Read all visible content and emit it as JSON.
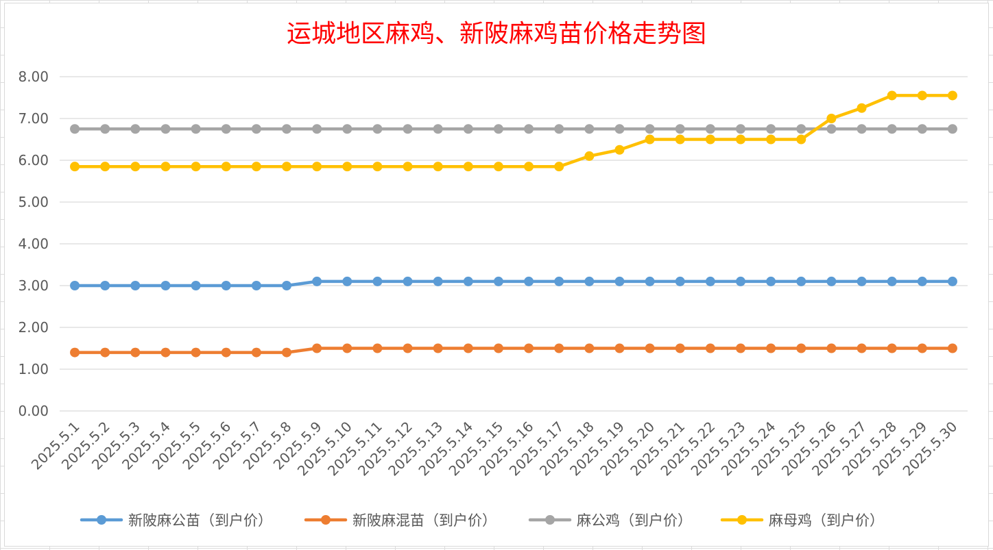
{
  "chart_data": {
    "type": "line",
    "title": "运城地区麻鸡、新陂麻鸡苗价格走势图",
    "xlabel": "",
    "ylabel": "",
    "ylim": [
      0,
      8
    ],
    "ytick_labels": [
      "0.00",
      "1.00",
      "2.00",
      "3.00",
      "4.00",
      "5.00",
      "6.00",
      "7.00",
      "8.00"
    ],
    "grid": "horizontal",
    "legend_position": "bottom",
    "categories": [
      "2025.5.1",
      "2025.5.2",
      "2025.5.3",
      "2025.5.4",
      "2025.5.5",
      "2025.5.6",
      "2025.5.7",
      "2025.5.8",
      "2025.5.9",
      "2025.5.10",
      "2025.5.11",
      "2025.5.12",
      "2025.5.13",
      "2025.5.14",
      "2025.5.15",
      "2025.5.16",
      "2025.5.17",
      "2025.5.18",
      "2025.5.19",
      "2025.5.20",
      "2025.5.21",
      "2025.5.22",
      "2025.5.23",
      "2025.5.24",
      "2025.5.25",
      "2025.5.26",
      "2025.5.27",
      "2025.5.28",
      "2025.5.29",
      "2025.5.30"
    ],
    "series": [
      {
        "name": "新陂麻公苗（到户价）",
        "color": "#5b9bd5",
        "values": [
          3.0,
          3.0,
          3.0,
          3.0,
          3.0,
          3.0,
          3.0,
          3.0,
          3.1,
          3.1,
          3.1,
          3.1,
          3.1,
          3.1,
          3.1,
          3.1,
          3.1,
          3.1,
          3.1,
          3.1,
          3.1,
          3.1,
          3.1,
          3.1,
          3.1,
          3.1,
          3.1,
          3.1,
          3.1,
          3.1
        ]
      },
      {
        "name": "新陂麻混苗（到户价）",
        "color": "#ed7d31",
        "values": [
          1.4,
          1.4,
          1.4,
          1.4,
          1.4,
          1.4,
          1.4,
          1.4,
          1.5,
          1.5,
          1.5,
          1.5,
          1.5,
          1.5,
          1.5,
          1.5,
          1.5,
          1.5,
          1.5,
          1.5,
          1.5,
          1.5,
          1.5,
          1.5,
          1.5,
          1.5,
          1.5,
          1.5,
          1.5,
          1.5
        ]
      },
      {
        "name": "麻公鸡（到户价）",
        "color": "#a5a5a5",
        "values": [
          6.75,
          6.75,
          6.75,
          6.75,
          6.75,
          6.75,
          6.75,
          6.75,
          6.75,
          6.75,
          6.75,
          6.75,
          6.75,
          6.75,
          6.75,
          6.75,
          6.75,
          6.75,
          6.75,
          6.75,
          6.75,
          6.75,
          6.75,
          6.75,
          6.75,
          6.75,
          6.75,
          6.75,
          6.75,
          6.75
        ]
      },
      {
        "name": "麻母鸡（到户价）",
        "color": "#ffc000",
        "values": [
          5.85,
          5.85,
          5.85,
          5.85,
          5.85,
          5.85,
          5.85,
          5.85,
          5.85,
          5.85,
          5.85,
          5.85,
          5.85,
          5.85,
          5.85,
          5.85,
          5.85,
          6.1,
          6.25,
          6.5,
          6.5,
          6.5,
          6.5,
          6.5,
          6.5,
          7.0,
          7.25,
          7.55,
          7.55,
          7.55
        ]
      }
    ]
  }
}
